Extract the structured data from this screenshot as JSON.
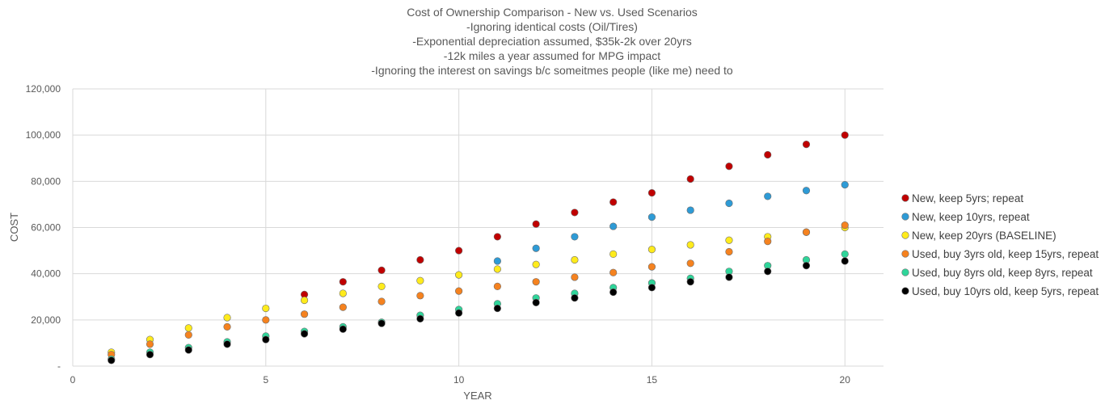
{
  "chart_data": {
    "type": "scatter",
    "title_lines": [
      "Cost of Ownership Comparison - New vs. Used Scenarios",
      "-Ignoring identical costs (Oil/Tires)",
      "-Exponential depreciation assumed, $35k-2k over 20yrs",
      "-12k miles a year assumed for MPG impact",
      "-Ignoring the interest on savings b/c someitmes people (like me) need to"
    ],
    "xlabel": "YEAR",
    "ylabel": "COST",
    "xlim": [
      0,
      21
    ],
    "ylim": [
      0,
      120000
    ],
    "x_ticks": [
      0,
      5,
      10,
      15,
      20
    ],
    "y_ticks": [
      {
        "value": 0,
        "label": "-"
      },
      {
        "value": 20000,
        "label": "20,000"
      },
      {
        "value": 40000,
        "label": "40,000"
      },
      {
        "value": 60000,
        "label": "60,000"
      },
      {
        "value": 80000,
        "label": "80,000"
      },
      {
        "value": 100000,
        "label": "100,000"
      },
      {
        "value": 120000,
        "label": "120,000"
      }
    ],
    "grid": true,
    "legend_position": "right",
    "x": [
      1,
      2,
      3,
      4,
      5,
      6,
      7,
      8,
      9,
      10,
      11,
      12,
      13,
      14,
      15,
      16,
      17,
      18,
      19,
      20
    ],
    "series": [
      {
        "name": "New, keep 5yrs; repeat",
        "color": "#c00000",
        "values": [
          null,
          null,
          null,
          null,
          null,
          31000,
          36500,
          41500,
          46000,
          50000,
          56000,
          61500,
          66500,
          71000,
          75000,
          81000,
          86500,
          91500,
          96000,
          100000
        ]
      },
      {
        "name": "New, keep 10yrs, repeat",
        "color": "#2e9bd6",
        "values": [
          null,
          null,
          null,
          null,
          null,
          null,
          null,
          null,
          null,
          null,
          45500,
          51000,
          56000,
          60500,
          64500,
          67500,
          70500,
          73500,
          76000,
          78500
        ]
      },
      {
        "name": "New, keep 20yrs (BASELINE)",
        "color": "#ffeb1c",
        "values": [
          6000,
          11500,
          16500,
          21000,
          25000,
          28500,
          31500,
          34500,
          37000,
          39500,
          42000,
          44000,
          46000,
          48500,
          50500,
          52500,
          54500,
          56000,
          58000,
          60000
        ]
      },
      {
        "name": "Used, buy 3yrs old, keep 15yrs, repeat",
        "color": "#f5821f",
        "values": [
          5000,
          9500,
          13500,
          17000,
          20000,
          22500,
          25500,
          28000,
          30500,
          32500,
          34500,
          36500,
          38500,
          40500,
          43000,
          44500,
          49500,
          54000,
          58000,
          61000
        ]
      },
      {
        "name": "Used, buy 8yrs old, keep 8yrs, repeat",
        "color": "#2fd59a",
        "values": [
          3000,
          6000,
          8000,
          10500,
          13000,
          15000,
          17000,
          19000,
          22000,
          24500,
          27000,
          29500,
          31500,
          34000,
          36000,
          38000,
          41000,
          43500,
          46000,
          48500
        ]
      },
      {
        "name": "Used, buy 10yrs old, keep 5yrs, repeat",
        "color": "#000000",
        "values": [
          2500,
          5000,
          7000,
          9500,
          11500,
          14000,
          16000,
          18500,
          20500,
          23000,
          25000,
          27500,
          29500,
          32000,
          34000,
          36500,
          38500,
          41000,
          43500,
          45500
        ]
      }
    ]
  }
}
